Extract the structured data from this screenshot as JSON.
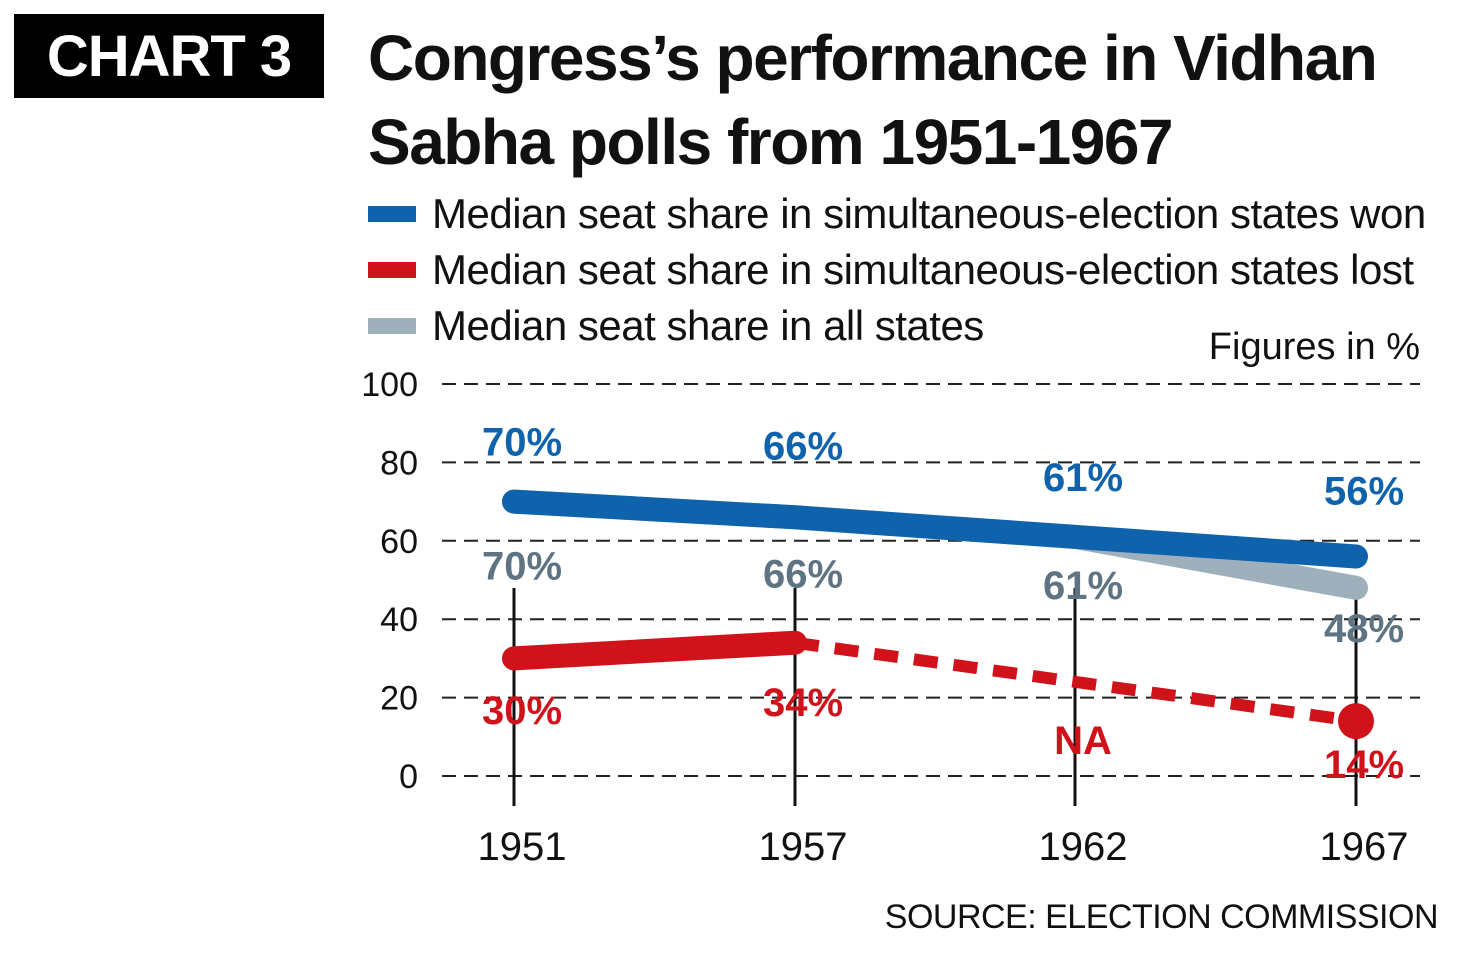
{
  "header": {
    "badge": "CHART 3",
    "title": "Congress’s  performance in Vidhan Sabha polls from 1951-1967"
  },
  "legend": [
    {
      "label": "Median seat share in simultaneous-election states won",
      "color": "#0f62ac"
    },
    {
      "label": "Median seat share in simultaneous-election states lost",
      "color": "#d0121b"
    },
    {
      "label": "Median seat share in all states",
      "color": "#9fb0bd"
    }
  ],
  "note": "Figures in %",
  "source": "SOURCE: ELECTION COMMISSION",
  "chart_data": {
    "type": "line",
    "categories": [
      "1951",
      "1957",
      "1962",
      "1967"
    ],
    "ylim": [
      0,
      100
    ],
    "yticks": [
      0,
      20,
      40,
      60,
      80,
      100
    ],
    "grid": true,
    "xlabel": "",
    "ylabel": "",
    "series": [
      {
        "name": "Median seat share in simultaneous-election states won",
        "color": "#0f62ac",
        "values": [
          70,
          66,
          61,
          56
        ],
        "labels": [
          "70%",
          "66%",
          "61%",
          "56%"
        ],
        "label_color": "#0f62ac"
      },
      {
        "name": "Median seat share in all states",
        "color": "#9fb0bd",
        "values": [
          70,
          66,
          61,
          48
        ],
        "labels": [
          "70%",
          "66%",
          "61%",
          "48%"
        ],
        "label_color": "#5f7482"
      },
      {
        "name": "Median seat share in simultaneous-election states lost",
        "color": "#d0121b",
        "values": [
          30,
          34,
          null,
          14
        ],
        "labels": [
          "30%",
          "34%",
          "NA",
          "14%"
        ],
        "label_color": "#d0121b",
        "dashed_after_index": 1
      }
    ]
  }
}
